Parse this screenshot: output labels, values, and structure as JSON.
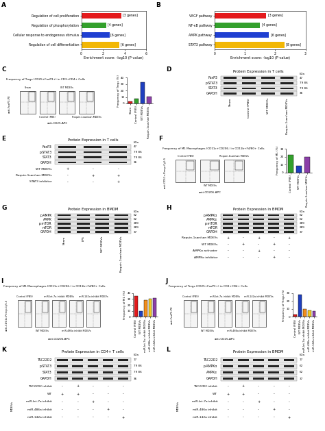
{
  "chart_data": [
    {
      "panel": "A",
      "type": "bar",
      "orientation": "horizontal",
      "categories": [
        "Regulation of cell proliferation",
        "Regulation of phosphorylation",
        "Cellular response to endogenous stimulus",
        "Regulation of cell differentiation"
      ],
      "values": [
        3.7,
        2.3,
        2.6,
        3.5
      ],
      "colors": [
        "#e41a1c",
        "#33a02c",
        "#1f3fd1",
        "#f2b705"
      ],
      "annotations": [
        "[3 genes]",
        "[4 genes]",
        "[6 genes]",
        "[6 genes]"
      ],
      "x_label": "Enrichment score: -log10 (P value)",
      "xlim": [
        0,
        6
      ],
      "xticks": [
        0,
        2,
        4,
        6
      ]
    },
    {
      "panel": "B",
      "type": "bar",
      "orientation": "horizontal",
      "categories": [
        "VEGF pathway",
        "NF-κB pathway",
        "AMPK pathway",
        "STAT3 pathway"
      ],
      "values": [
        1.7,
        1.5,
        1.8,
        2.3
      ],
      "colors": [
        "#e41a1c",
        "#33a02c",
        "#1f3fd1",
        "#f2b705"
      ],
      "annotations": [
        "[3 genes]",
        "[4 genes]",
        "[6 genes]",
        "[8 genes]"
      ],
      "x_label": "Enrichment score: -log10 (P value)",
      "xlim": [
        0,
        3
      ],
      "xticks": [
        0,
        1,
        2,
        3
      ]
    },
    {
      "panel": "C",
      "type": "flow",
      "title": "Frequency of Tregs (CD25+FoxP3+) in CD3+CD4+ Cells",
      "x_label": "anti-CD25-APC",
      "y_label": "anti-FoxP3-PE",
      "samples": [
        "Sham",
        "Control (PBS)",
        "WT MDEVs",
        "Roquin-1san/san MDEVs"
      ],
      "bar": {
        "type": "bar",
        "categories": [
          "Sham",
          "Control (PBS)",
          "WT MDEVs",
          "Roquin-1san/san MDEVs"
        ],
        "values": [
          3,
          7,
          33,
          11
        ],
        "colors": [
          "#e41a1c",
          "#33a02c",
          "#1f3fbf",
          "#8b3fa8"
        ],
        "y_label": "Frequency of Tregs (%)",
        "ylim": [
          0,
          40
        ],
        "yticks": [
          0,
          10,
          20,
          30,
          40
        ]
      }
    },
    {
      "panel": "D",
      "type": "blot",
      "title": "Protein Expression in T cells",
      "unit": "kDa",
      "bands": [
        {
          "name": "FoxP3",
          "kda": "47"
        },
        {
          "name": "p-STAT3",
          "kda": "79 86"
        },
        {
          "name": "STAT3",
          "kda": "79 86"
        },
        {
          "name": "GAPDH",
          "kda": "36"
        }
      ],
      "lane_labels": [
        "Sham",
        "Control (PBS)",
        "WT MDEVs",
        "Roquin-1san/san MDEVs"
      ]
    },
    {
      "panel": "E",
      "type": "blot",
      "title": "Protein Expression in T cells",
      "unit": "kDa",
      "bands": [
        {
          "name": "FoxP3",
          "kda": "47"
        },
        {
          "name": "p-STAT3",
          "kda": "79 86"
        },
        {
          "name": "STAT3",
          "kda": "79 86"
        },
        {
          "name": "GAPDH",
          "kda": "36"
        }
      ],
      "conditions": [
        {
          "name": "WT MDEVs",
          "marks": [
            "+",
            "-",
            "-"
          ]
        },
        {
          "name": "Roquin-1san/san MDEVs",
          "marks": [
            "-",
            "+",
            "+"
          ]
        },
        {
          "name": "STAT3 inhibitor",
          "marks": [
            "-",
            "-",
            "+"
          ]
        }
      ]
    },
    {
      "panel": "F",
      "type": "flow",
      "title": "Frequency of M1 Macrophages (CD11c+CD206-) in CD11b+F4/80+ Cells",
      "x_label": "anti-CD206-APC",
      "y_label": "anti-CD11c-Percp-Cy5.5",
      "samples": [
        "Control (PBS)",
        "WT MDEVs",
        "Roquin-1san/san MDEVs"
      ],
      "bar": {
        "type": "bar",
        "categories": [
          "Control (PBS)",
          "WT MDEVs",
          "Roquin-1san/san MDEVs"
        ],
        "values": [
          22,
          8,
          20
        ],
        "colors": [
          "#33a02c",
          "#1f3fbf",
          "#8b3fa8"
        ],
        "y_label": "Frequency of M1 (%)",
        "ylim": [
          0,
          30
        ],
        "yticks": [
          0,
          10,
          20,
          30
        ]
      }
    },
    {
      "panel": "G",
      "type": "blot",
      "title": "Protein Expression in BMDM",
      "unit": "kDa",
      "bands": [
        {
          "name": "p-AMPK",
          "kda": "62"
        },
        {
          "name": "AMPK",
          "kda": "62"
        },
        {
          "name": "p-mTOR",
          "kda": "289"
        },
        {
          "name": "mTOR",
          "kda": "289"
        },
        {
          "name": "GAPDH",
          "kda": "37"
        }
      ],
      "lane_labels": [
        "Sham",
        "LPS",
        "WT MDEVs",
        "Roquin-1san/san MDEVs"
      ]
    },
    {
      "panel": "H",
      "type": "blot",
      "title": "Protein Expression in BMDM",
      "unit": "kDa",
      "bands": [
        {
          "name": "p-AMPKα",
          "kda": "62"
        },
        {
          "name": "AMPKα",
          "kda": "62"
        },
        {
          "name": "p-mTOR",
          "kda": "289"
        },
        {
          "name": "mTOR",
          "kda": "289"
        },
        {
          "name": "GAPDH",
          "kda": "37"
        }
      ],
      "conditions": [
        {
          "name": "Roquin-1san/san MDEVs",
          "marks": [
            "+",
            "-",
            "+",
            "-",
            "+"
          ]
        },
        {
          "name": "WT MDEVs",
          "marks": [
            "-",
            "+",
            "-",
            "+",
            "-"
          ]
        },
        {
          "name": "AMPKα activater",
          "marks": [
            "-",
            "-",
            "+",
            "-",
            "-"
          ]
        },
        {
          "name": "AMPKα inhibitor",
          "marks": [
            "-",
            "-",
            "-",
            "+",
            "-"
          ]
        }
      ]
    },
    {
      "panel": "I",
      "type": "flow",
      "title": "Frequency of M1 Macrophages (CD11c+CD206-) in CD11b+F4/80+ Cells",
      "x_label": "anti-CD206-APC",
      "y_label": "anti-CD11c-Percp-Cy5.5",
      "samples": [
        "Control (PBS)",
        "WT MDEVs",
        "miR-let-7a inhibit MDEVs",
        "miR-486a inhibit MDEVs",
        "miR-142a inhibit MDEVs"
      ],
      "bar": {
        "type": "bar",
        "categories": [
          "Control (PBS)",
          "WT MDEVs",
          "miR-let-7a inhibit MDEVs",
          "miR-486a inhibit MDEVs",
          "miR-142a inhibit MDEVs"
        ],
        "values": [
          35,
          10,
          28,
          30,
          32
        ],
        "colors": [
          "#e41a1c",
          "#1f3fbf",
          "#f28e1c",
          "#f2c81c",
          "#8b3fa8"
        ],
        "y_label": "Frequency of M1 (%)",
        "ylim": [
          0,
          40
        ],
        "yticks": [
          0,
          10,
          20,
          30,
          40
        ]
      }
    },
    {
      "panel": "J",
      "type": "flow",
      "title": "Frequency of Tregs (CD25+FoxP3+) in CD3+CD4+ Cells",
      "x_label": "anti-CD25-APC",
      "y_label": "anti-FoxP3-PE",
      "samples": [
        "Control (PBS)",
        "WT MDEVs",
        "miR-let-7a inhibit MDEVs",
        "miR-486a inhibit MDEVs",
        "miR-142a inhibit MDEVs"
      ],
      "bar": {
        "type": "bar",
        "categories": [
          "Control (PBS)",
          "WT MDEVs",
          "miR-let-7a inhibit MDEVs",
          "miR-486a inhibit MDEVs",
          "miR-142a inhibit MDEVs"
        ],
        "values": [
          3,
          28,
          10,
          8,
          7
        ],
        "colors": [
          "#e41a1c",
          "#1f3fbf",
          "#f28e1c",
          "#f2c81c",
          "#8b3fa8"
        ],
        "y_label": "Frequency of Tregs (%)",
        "ylim": [
          0,
          30
        ],
        "yticks": [
          0,
          10,
          20,
          30
        ]
      }
    },
    {
      "panel": "K",
      "type": "blot",
      "title": "Protein Expression in CD4+ T cells",
      "unit": "kDa",
      "bands": [
        {
          "name": "TSC22D2",
          "kda": "17"
        },
        {
          "name": "p-STAT3",
          "kda": "79 86"
        },
        {
          "name": "STAT3",
          "kda": "79 86"
        },
        {
          "name": "GAPDH",
          "kda": "36"
        }
      ],
      "group_label": "MDEVs",
      "conditions": [
        {
          "name": "TSC22D2 inhibit",
          "marks": [
            "-",
            "+",
            "-",
            "-",
            "-"
          ]
        },
        {
          "name": "WT",
          "marks": [
            "+",
            "+",
            "-",
            "-",
            "-"
          ]
        },
        {
          "name": "miR-let-7a inhibit",
          "marks": [
            "-",
            "-",
            "+",
            "-",
            "-"
          ]
        },
        {
          "name": "miR-486a inhibit",
          "marks": [
            "-",
            "-",
            "-",
            "+",
            "-"
          ]
        },
        {
          "name": "miR-142a inhibit",
          "marks": [
            "-",
            "-",
            "-",
            "-",
            "+"
          ]
        }
      ]
    },
    {
      "panel": "L",
      "type": "blot",
      "title": "Protein Expression in BMDM",
      "unit": "kDa",
      "bands": [
        {
          "name": "TSC22D2",
          "kda": "17"
        },
        {
          "name": "p-AMPKα",
          "kda": "62"
        },
        {
          "name": "AMPKα",
          "kda": "62"
        },
        {
          "name": "GAPDH",
          "kda": "37"
        }
      ],
      "group_label": "MDEVs",
      "conditions": [
        {
          "name": "TSC22D2 inhibit",
          "marks": [
            "-",
            "+",
            "-",
            "-",
            "-"
          ]
        },
        {
          "name": "WT",
          "marks": [
            "+",
            "+",
            "-",
            "-",
            "-"
          ]
        },
        {
          "name": "miR-let-7a inhibit",
          "marks": [
            "-",
            "-",
            "+",
            "-",
            "-"
          ]
        },
        {
          "name": "miR-486a inhibit",
          "marks": [
            "-",
            "-",
            "-",
            "+",
            "-"
          ]
        },
        {
          "name": "miR-142a inhibit",
          "marks": [
            "-",
            "-",
            "-",
            "-",
            "+"
          ]
        }
      ]
    }
  ]
}
